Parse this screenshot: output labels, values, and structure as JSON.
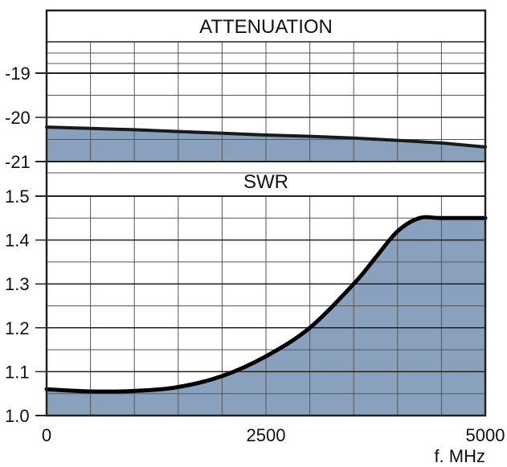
{
  "chart_data": [
    {
      "type": "area",
      "title": "ATTENUATION",
      "xlim": [
        0,
        5000
      ],
      "ylim": [
        -21,
        -19
      ],
      "y_inverted": true,
      "y_axis_extends_to_top_band": true,
      "yticks": [
        "-19",
        "-20",
        "-21"
      ],
      "x": [
        0,
        500,
        1000,
        1500,
        2000,
        2500,
        3000,
        3500,
        4000,
        4500,
        5000
      ],
      "series": [
        {
          "values": [
            -20.22,
            -20.25,
            -20.28,
            -20.32,
            -20.36,
            -20.4,
            -20.43,
            -20.47,
            -20.52,
            -20.58,
            -20.67
          ]
        }
      ],
      "grid": true,
      "fill_color": "#8aa1bd",
      "line_color": "#1a1a1a"
    },
    {
      "type": "area",
      "title": "SWR",
      "xlim": [
        0,
        5000
      ],
      "ylim": [
        1.0,
        1.5
      ],
      "yticks": [
        "1.0",
        "1.1",
        "1.2",
        "1.3",
        "1.4",
        "1.5"
      ],
      "xticks": [
        "0",
        "2500",
        "5000"
      ],
      "xlabel": "f. MHz",
      "x": [
        0,
        500,
        1000,
        1500,
        2000,
        2500,
        3000,
        3500,
        3750,
        4000,
        4250,
        4500,
        5000
      ],
      "series": [
        {
          "values": [
            1.06,
            1.055,
            1.056,
            1.065,
            1.09,
            1.135,
            1.2,
            1.3,
            1.36,
            1.42,
            1.45,
            1.45,
            1.45
          ]
        }
      ],
      "grid": true,
      "fill_color": "#8aa1bd",
      "line_color": "#000000"
    }
  ]
}
